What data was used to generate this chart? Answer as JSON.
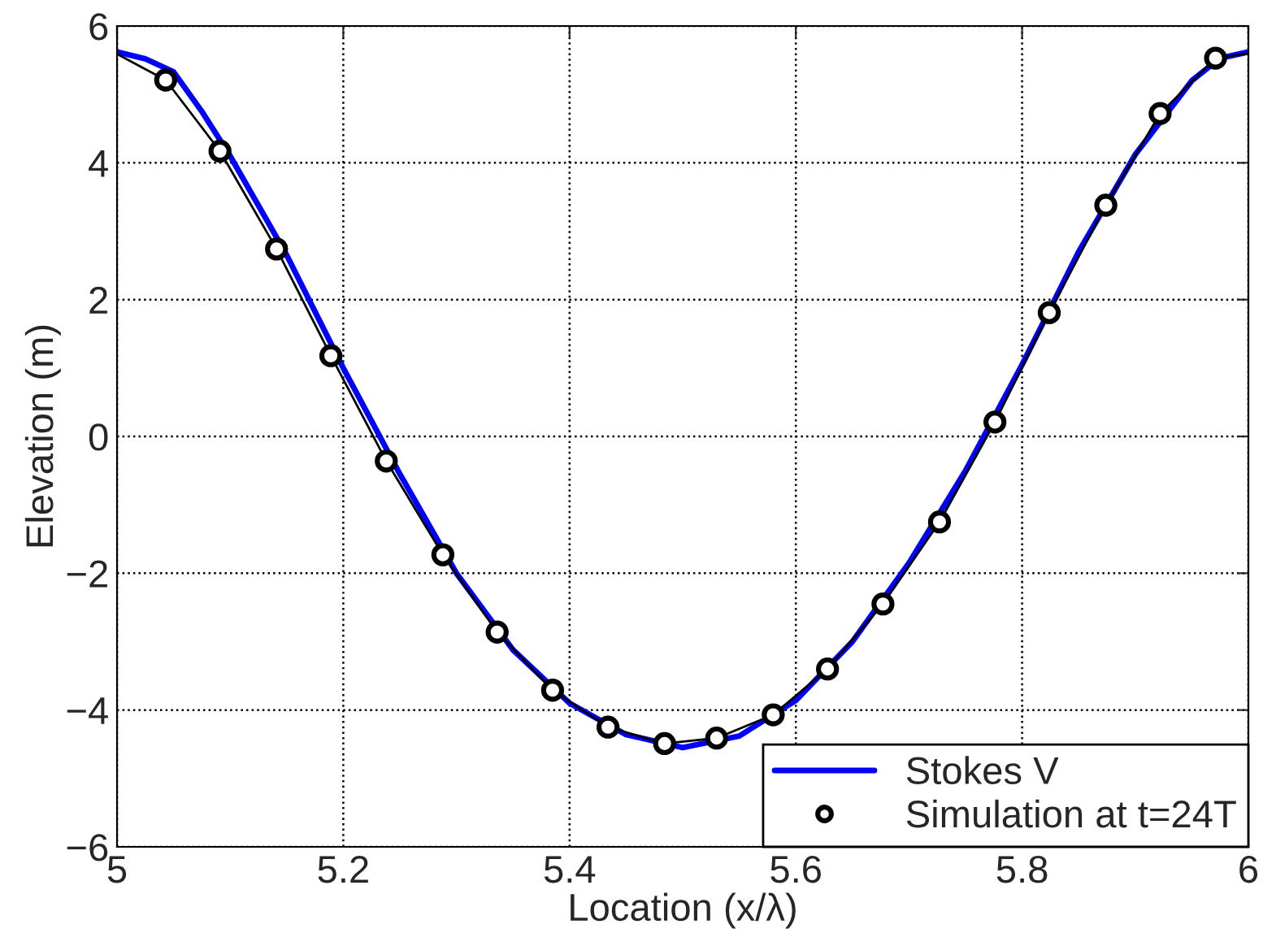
{
  "chart_data": {
    "type": "line",
    "xlabel": "Location (x/λ)",
    "ylabel": "Elevation (m)",
    "xlim": [
      5,
      6
    ],
    "xticks": [
      5,
      5.2,
      5.4,
      5.6,
      5.8,
      6
    ],
    "ylim": [
      -6,
      6
    ],
    "yticks": [
      -6,
      -4,
      -2,
      0,
      2,
      4,
      6
    ],
    "grid": true,
    "legend": "bottom right",
    "series": [
      {
        "color": "#000000",
        "marker": "none",
        "x": [
          5.0,
          5.043,
          5.091,
          5.141,
          5.189,
          5.238,
          5.288,
          5.336,
          5.385,
          5.434,
          5.484,
          5.53,
          5.58,
          5.628,
          5.677,
          5.727,
          5.776,
          5.824,
          5.874,
          5.922,
          5.971,
          6.0
        ],
        "values": [
          5.59,
          5.21,
          4.17,
          2.74,
          1.18,
          -0.36,
          -1.73,
          -2.86,
          -3.71,
          -4.25,
          -4.49,
          -4.41,
          -4.07,
          -3.4,
          -2.45,
          -1.25,
          0.21,
          1.81,
          3.38,
          4.72,
          5.53,
          5.6
        ]
      },
      {
        "name": "Stokes V",
        "color": "#0000ff",
        "marker": "none",
        "x": [
          5.0,
          5.025,
          5.05,
          5.075,
          5.1,
          5.15,
          5.2,
          5.25,
          5.3,
          5.35,
          5.4,
          5.45,
          5.5,
          5.55,
          5.6,
          5.65,
          5.7,
          5.75,
          5.8,
          5.85,
          5.9,
          5.95,
          5.975,
          6.0
        ],
        "values": [
          5.62,
          5.52,
          5.33,
          4.75,
          4.1,
          2.65,
          1.0,
          -0.55,
          -2.0,
          -3.12,
          -3.9,
          -4.36,
          -4.55,
          -4.38,
          -3.86,
          -3.0,
          -1.85,
          -0.5,
          1.05,
          2.7,
          4.12,
          5.2,
          5.53,
          5.62
        ]
      },
      {
        "name": "Simulation at t=24T",
        "type": "scatter",
        "color": "#000000",
        "marker": "circle",
        "x": [
          5.043,
          5.091,
          5.141,
          5.189,
          5.238,
          5.288,
          5.336,
          5.385,
          5.434,
          5.484,
          5.53,
          5.58,
          5.628,
          5.677,
          5.727,
          5.776,
          5.824,
          5.874,
          5.922,
          5.971
        ],
        "values": [
          5.21,
          4.17,
          2.74,
          1.18,
          -0.36,
          -1.73,
          -2.86,
          -3.71,
          -4.25,
          -4.49,
          -4.41,
          -4.07,
          -3.4,
          -2.45,
          -1.25,
          0.21,
          1.81,
          3.38,
          4.72,
          5.53
        ]
      }
    ]
  }
}
